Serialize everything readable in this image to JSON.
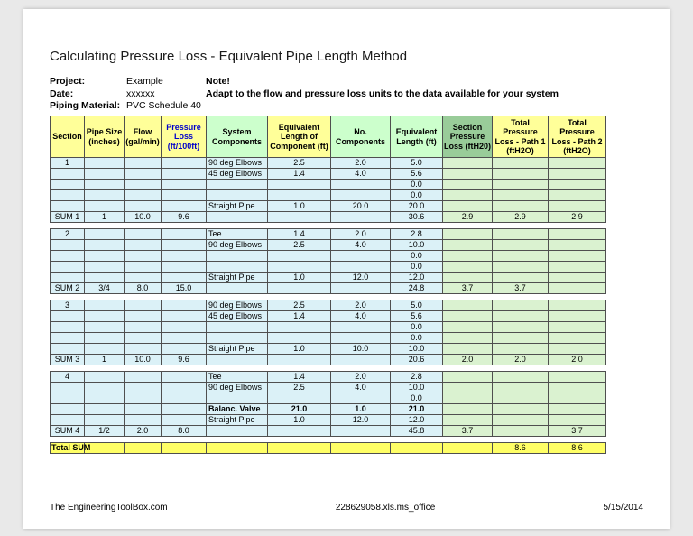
{
  "palette": {
    "header_yellow": "#ffff99",
    "header_pale_green": "#ccffcc",
    "header_green": "#99cc99",
    "body_cyan": "#dbf1f7",
    "body_green": "#daf2d0",
    "total_yellow": "#ffff66",
    "header_blue_text": "#0000cc"
  },
  "page": {
    "title": "Calculating Pressure Loss - Equivalent Pipe Length Method",
    "meta": [
      {
        "label": "Project:",
        "value": "Example",
        "note": "Note!"
      },
      {
        "label": "Date:",
        "value": "xxxxxx",
        "note": "Adapt to the flow and pressure loss units to the data available for your system"
      },
      {
        "label": "Piping Material:",
        "value": "PVC Schedule 40",
        "note": ""
      }
    ],
    "footer": {
      "left": "The EngineeringToolBox.com",
      "center": "228629058.xls.ms_office",
      "right": "5/15/2014"
    }
  },
  "table": {
    "headers": [
      {
        "label": "Section",
        "bg": "header_yellow"
      },
      {
        "label": "Pipe Size (inches)",
        "bg": "header_yellow"
      },
      {
        "label": "Flow (gal/min)",
        "bg": "header_yellow"
      },
      {
        "label": "Pressure Loss (ft/100ft)",
        "bg": "header_yellow",
        "blue_text": true
      },
      {
        "label": "System Components",
        "bg": "header_pale_green"
      },
      {
        "label": "Equivalent Length of Component (ft)",
        "bg": "header_yellow"
      },
      {
        "label": "No. Components",
        "bg": "header_pale_green"
      },
      {
        "label": "Equivalent Length (ft)",
        "bg": "header_pale_green"
      },
      {
        "label": "Section Pressure Loss (ftH20)",
        "bg": "header_green"
      },
      {
        "label": "Total Pressure Loss - Path 1 (ftH2O)",
        "bg": "header_yellow"
      },
      {
        "label": "Total Pressure Loss - Path 2 (ftH2O)",
        "bg": "header_yellow"
      }
    ],
    "rows": [
      {
        "type": "data",
        "cells": [
          "1",
          "",
          "",
          "",
          "90 deg Elbows",
          "2.5",
          "2.0",
          "5.0",
          "",
          "",
          ""
        ]
      },
      {
        "type": "data",
        "cells": [
          "",
          "",
          "",
          "",
          "45 deg Elbows",
          "1.4",
          "4.0",
          "5.6",
          "",
          "",
          ""
        ]
      },
      {
        "type": "data",
        "cells": [
          "",
          "",
          "",
          "",
          "",
          "",
          "",
          "0.0",
          "",
          "",
          ""
        ]
      },
      {
        "type": "data",
        "cells": [
          "",
          "",
          "",
          "",
          "",
          "",
          "",
          "0.0",
          "",
          "",
          ""
        ]
      },
      {
        "type": "data",
        "cells": [
          "",
          "",
          "",
          "",
          "Straight Pipe",
          "1.0",
          "20.0",
          "20.0",
          "",
          "",
          ""
        ]
      },
      {
        "type": "sum",
        "cells": [
          "SUM 1",
          "1",
          "10.0",
          "9.6",
          "",
          "",
          "",
          "30.6",
          "2.9",
          "2.9",
          "2.9"
        ]
      },
      {
        "type": "spacer"
      },
      {
        "type": "data",
        "cells": [
          "2",
          "",
          "",
          "",
          "Tee",
          "1.4",
          "2.0",
          "2.8",
          "",
          "",
          ""
        ]
      },
      {
        "type": "data",
        "cells": [
          "",
          "",
          "",
          "",
          "90 deg Elbows",
          "2.5",
          "4.0",
          "10.0",
          "",
          "",
          ""
        ]
      },
      {
        "type": "data",
        "cells": [
          "",
          "",
          "",
          "",
          "",
          "",
          "",
          "0.0",
          "",
          "",
          ""
        ]
      },
      {
        "type": "data",
        "cells": [
          "",
          "",
          "",
          "",
          "",
          "",
          "",
          "0.0",
          "",
          "",
          ""
        ]
      },
      {
        "type": "data",
        "cells": [
          "",
          "",
          "",
          "",
          "Straight Pipe",
          "1.0",
          "12.0",
          "12.0",
          "",
          "",
          ""
        ]
      },
      {
        "type": "sum",
        "cells": [
          "SUM 2",
          "3/4",
          "8.0",
          "15.0",
          "",
          "",
          "",
          "24.8",
          "3.7",
          "3.7",
          ""
        ]
      },
      {
        "type": "spacer"
      },
      {
        "type": "data",
        "cells": [
          "3",
          "",
          "",
          "",
          "90 deg Elbows",
          "2.5",
          "2.0",
          "5.0",
          "",
          "",
          ""
        ]
      },
      {
        "type": "data",
        "cells": [
          "",
          "",
          "",
          "",
          "45 deg Elbows",
          "1.4",
          "4.0",
          "5.6",
          "",
          "",
          ""
        ]
      },
      {
        "type": "data",
        "cells": [
          "",
          "",
          "",
          "",
          "",
          "",
          "",
          "0.0",
          "",
          "",
          ""
        ]
      },
      {
        "type": "data",
        "cells": [
          "",
          "",
          "",
          "",
          "",
          "",
          "",
          "0.0",
          "",
          "",
          ""
        ]
      },
      {
        "type": "data",
        "cells": [
          "",
          "",
          "",
          "",
          "Straight Pipe",
          "1.0",
          "10.0",
          "10.0",
          "",
          "",
          ""
        ]
      },
      {
        "type": "sum",
        "cells": [
          "SUM 3",
          "1",
          "10.0",
          "9.6",
          "",
          "",
          "",
          "20.6",
          "2.0",
          "2.0",
          "2.0"
        ]
      },
      {
        "type": "spacer"
      },
      {
        "type": "data",
        "cells": [
          "4",
          "",
          "",
          "",
          "Tee",
          "1.4",
          "2.0",
          "2.8",
          "",
          "",
          ""
        ]
      },
      {
        "type": "data",
        "cells": [
          "",
          "",
          "",
          "",
          "90 deg Elbows",
          "2.5",
          "4.0",
          "10.0",
          "",
          "",
          ""
        ]
      },
      {
        "type": "data",
        "cells": [
          "",
          "",
          "",
          "",
          "",
          "",
          "",
          "0.0",
          "",
          "",
          ""
        ]
      },
      {
        "type": "data",
        "bold": true,
        "cells": [
          "",
          "",
          "",
          "",
          "Balanc. Valve",
          "21.0",
          "1.0",
          "21.0",
          "",
          "",
          ""
        ]
      },
      {
        "type": "data",
        "cells": [
          "",
          "",
          "",
          "",
          "Straight Pipe",
          "1.0",
          "12.0",
          "12.0",
          "",
          "",
          ""
        ]
      },
      {
        "type": "sum",
        "cells": [
          "SUM 4",
          "1/2",
          "2.0",
          "8.0",
          "",
          "",
          "",
          "45.8",
          "3.7",
          "",
          "3.7"
        ]
      },
      {
        "type": "spacer"
      },
      {
        "type": "total",
        "cells": [
          "Total SUM",
          "",
          "",
          "",
          "",
          "",
          "",
          "",
          "",
          "8.6",
          "8.6"
        ]
      }
    ]
  }
}
